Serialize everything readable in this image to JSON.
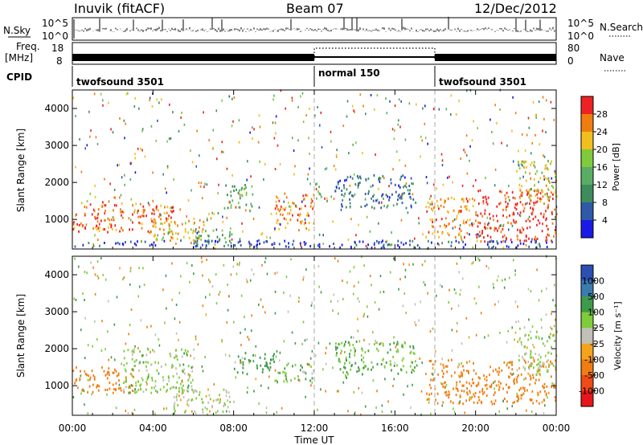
{
  "header": {
    "station": "Inuvik (fitACF)",
    "beam": "Beam 07",
    "date": "12/Dec/2012"
  },
  "nsky_panel": {
    "label": "N.Sky",
    "search_label": "N.Search",
    "ticks": [
      "10^5",
      "10^0"
    ]
  },
  "freq_panel": {
    "label_line1": "Freq.",
    "label_line2": "[MHz]",
    "nave_label": "Nave",
    "left_ticks": [
      "18",
      "8"
    ],
    "right_ticks": [
      "80",
      "0"
    ]
  },
  "cpid_panel": {
    "label": "CPID",
    "segments": [
      {
        "name": "twofsound 3501",
        "start_hour": 0,
        "end_hour": 12
      },
      {
        "name": "normal 150",
        "start_hour": 12,
        "end_hour": 18
      },
      {
        "name": "twofsound 3501",
        "start_hour": 18,
        "end_hour": 24
      }
    ]
  },
  "colors": {
    "power_scale": [
      "#1a1ae6",
      "#2e5aa8",
      "#3e8c5c",
      "#5aae64",
      "#7fcb3c",
      "#f2bf1f",
      "#f07d12",
      "#ee2222"
    ],
    "velocity_scale": [
      "#2c4fb4",
      "#3a7cb0",
      "#3e9a4a",
      "#7fcc3a",
      "#c0c0b6",
      "#f6a31c",
      "#f07d12",
      "#ee4b16",
      "#e8161a"
    ]
  },
  "chart_data": [
    {
      "type": "heatmap",
      "panel": "power",
      "title": "",
      "xlabel": "Time UT",
      "ylabel": "Slant Range [km]",
      "colorbar_label": "Power [dB]",
      "colorbar_ticks": [
        "28",
        "24",
        "20",
        "16",
        "12",
        "8",
        "4"
      ],
      "colorbar_range": [
        0,
        32
      ],
      "x_range_hours": [
        0,
        24
      ],
      "x_ticks": [
        "00:00",
        "04:00",
        "08:00",
        "12:00",
        "16:00",
        "20:00",
        "00:00"
      ],
      "y_range": [
        200,
        4500
      ],
      "y_ticks": [
        "1000",
        "2000",
        "3000",
        "4000"
      ],
      "regions": [
        {
          "t": [
            0.0,
            5.0
          ],
          "r": [
            650,
            1500
          ],
          "value": 27
        },
        {
          "t": [
            4.0,
            6.5
          ],
          "r": [
            350,
            1000
          ],
          "value": 23
        },
        {
          "t": [
            6.0,
            8.0
          ],
          "r": [
            250,
            700
          ],
          "value": 12
        },
        {
          "t": [
            7.5,
            9.0
          ],
          "r": [
            1300,
            2000
          ],
          "value": 14
        },
        {
          "t": [
            10.0,
            12.0
          ],
          "r": [
            700,
            1700
          ],
          "value": 25
        },
        {
          "t": [
            12.0,
            12.4
          ],
          "r": [
            1300,
            2000
          ],
          "value": 14
        },
        {
          "t": [
            13.0,
            17.0
          ],
          "r": [
            1300,
            2200
          ],
          "value": 8
        },
        {
          "t": [
            17.5,
            20.0
          ],
          "r": [
            500,
            1600
          ],
          "value": 25
        },
        {
          "t": [
            20.0,
            24.0
          ],
          "r": [
            400,
            1800
          ],
          "value": 30
        },
        {
          "t": [
            22.0,
            24.0
          ],
          "r": [
            1500,
            2600
          ],
          "value": 20
        },
        {
          "t": [
            0.0,
            24.0
          ],
          "r": [
            220,
            420
          ],
          "value": 4
        }
      ]
    },
    {
      "type": "heatmap",
      "panel": "velocity",
      "title": "",
      "xlabel": "Time UT",
      "ylabel": "Slant Range [km]",
      "colorbar_label": "Velocity [m s⁻¹]",
      "colorbar_ticks": [
        "1000",
        "500",
        "100",
        "25",
        "-25",
        "-100",
        "-500",
        "-1000"
      ],
      "x_range_hours": [
        0,
        24
      ],
      "x_ticks": [
        "00:00",
        "04:00",
        "08:00",
        "12:00",
        "16:00",
        "20:00",
        "00:00"
      ],
      "y_range": [
        200,
        4500
      ],
      "y_ticks": [
        "1000",
        "2000",
        "3000",
        "4000"
      ],
      "regions": [
        {
          "t": [
            0.0,
            3.0
          ],
          "r": [
            800,
            1500
          ],
          "value": -200
        },
        {
          "t": [
            2.5,
            6.0
          ],
          "r": [
            800,
            2000
          ],
          "value": 50
        },
        {
          "t": [
            5.0,
            8.0
          ],
          "r": [
            250,
            900
          ],
          "value": 20
        },
        {
          "t": [
            8.0,
            10.0
          ],
          "r": [
            1300,
            1900
          ],
          "value": 150
        },
        {
          "t": [
            10.0,
            12.0
          ],
          "r": [
            1100,
            1600
          ],
          "value": 80
        },
        {
          "t": [
            13.0,
            17.0
          ],
          "r": [
            1300,
            2200
          ],
          "value": 100
        },
        {
          "t": [
            17.5,
            24.0
          ],
          "r": [
            500,
            1700
          ],
          "value": -150
        },
        {
          "t": [
            22.0,
            24.0
          ],
          "r": [
            1300,
            2600
          ],
          "value": 25
        }
      ]
    }
  ]
}
